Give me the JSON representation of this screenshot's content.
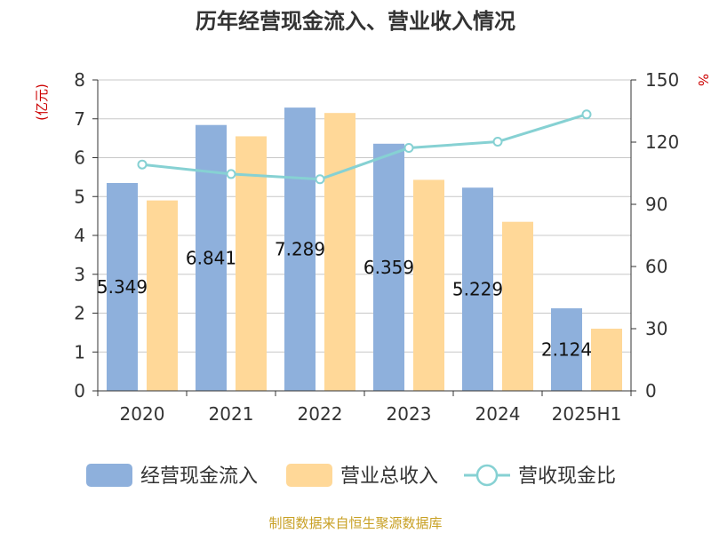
{
  "chart_data": {
    "type": "bar",
    "title": "历年经营现金流入、营业收入情况",
    "categories": [
      "2020",
      "2021",
      "2022",
      "2023",
      "2024",
      "2025H1"
    ],
    "left_axis": {
      "unit": "(亿元)",
      "ylim": [
        0,
        8
      ],
      "ticks": [
        "0",
        "1",
        "2",
        "3",
        "4",
        "5",
        "6",
        "7",
        "8"
      ]
    },
    "right_axis": {
      "unit": "%",
      "ylim": [
        0,
        150
      ],
      "ticks": [
        "0",
        "30",
        "60",
        "90",
        "120",
        "150"
      ]
    },
    "grid": true,
    "series": [
      {
        "name": "经营现金流入",
        "type": "bar",
        "axis": "left",
        "color": "#8eb0dc",
        "values": [
          5.349,
          6.841,
          7.289,
          6.359,
          5.229,
          2.124
        ],
        "labels": [
          "5.349",
          "6.841",
          "7.289",
          "6.359",
          "5.229",
          "2.124"
        ]
      },
      {
        "name": "营业总收入",
        "type": "bar",
        "axis": "left",
        "color": "#ffd898",
        "values": [
          4.9,
          6.55,
          7.15,
          5.43,
          4.35,
          1.6
        ]
      },
      {
        "name": "营收现金比",
        "type": "line",
        "axis": "right",
        "color": "#86d1d3",
        "values": [
          109.2,
          104.6,
          102.1,
          117.2,
          120.2,
          133.4
        ]
      }
    ],
    "legend_position": "bottom",
    "source": "制图数据来自恒生聚源数据库"
  }
}
